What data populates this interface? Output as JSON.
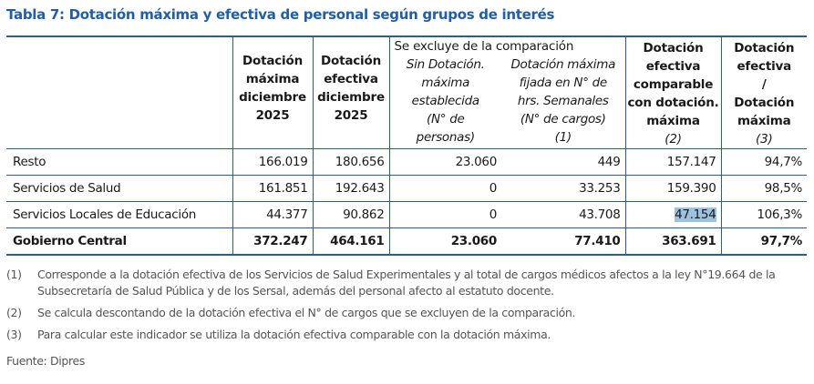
{
  "title": "Tabla 7: Dotación máxima y efectiva de personal según grupos de interés",
  "header": {
    "col_max": [
      "Dotación",
      "máxima",
      "diciembre",
      "2025"
    ],
    "col_efectiva": [
      "Dotación",
      "efectiva",
      "diciembre",
      "2025"
    ],
    "excluded_group_caption": "Se excluye de la comparación",
    "col_sin_dotacion": [
      "Sin Dotación.",
      "máxima",
      "establecida",
      "(N° de",
      "personas)"
    ],
    "col_hrs_semanales": [
      "Dotación máxima",
      "fijada en N° de",
      "hrs. Semanales",
      "(N° de cargos)",
      "(1)"
    ],
    "col_comparable": [
      "Dotación",
      "efectiva",
      "comparable",
      "con dotación.",
      "máxima",
      "(2)"
    ],
    "col_ratio": [
      "Dotación",
      "efectiva",
      "/",
      "Dotación",
      "máxima",
      "(3)"
    ]
  },
  "rows": [
    {
      "name": "Resto",
      "max": "166.019",
      "efectiva": "180.656",
      "sin_dotacion": "23.060",
      "hrs_semanales": "449",
      "comparable": "157.147",
      "ratio": "94,7%"
    },
    {
      "name": "Servicios de Salud",
      "max": "161.851",
      "efectiva": "192.643",
      "sin_dotacion": "0",
      "hrs_semanales": "33.253",
      "comparable": "159.390",
      "ratio": "98,5%"
    },
    {
      "name": "Servicios Locales de Educación",
      "max": "44.377",
      "efectiva": "90.862",
      "sin_dotacion": "0",
      "hrs_semanales": "43.708",
      "comparable": "47.154",
      "ratio": "106,3%"
    },
    {
      "name": "Gobierno Central",
      "max": "372.247",
      "efectiva": "464.161",
      "sin_dotacion": "23.060",
      "hrs_semanales": "77.410",
      "comparable": "363.691",
      "ratio": "97,7%"
    }
  ],
  "notes": [
    {
      "num": "(1)",
      "text": "Corresponde a la dotación efectiva de los Servicios de Salud Experimentales y al total de cargos médicos afectos a la ley N°19.664 de la Subsecretaría de Salud Pública y de los Sersal, además del personal afecto al estatuto docente."
    },
    {
      "num": "(2)",
      "text": "Se calcula descontando de la dotación efectiva el N° de cargos que se excluyen de la comparación."
    },
    {
      "num": "(3)",
      "text": "Para calcular este indicador se utiliza la dotación efectiva comparable con la dotación máxima."
    }
  ],
  "source": "Fuente: Dipres",
  "colors": {
    "accent": "#1f5ea8",
    "highlight": "#9dc3e0"
  }
}
